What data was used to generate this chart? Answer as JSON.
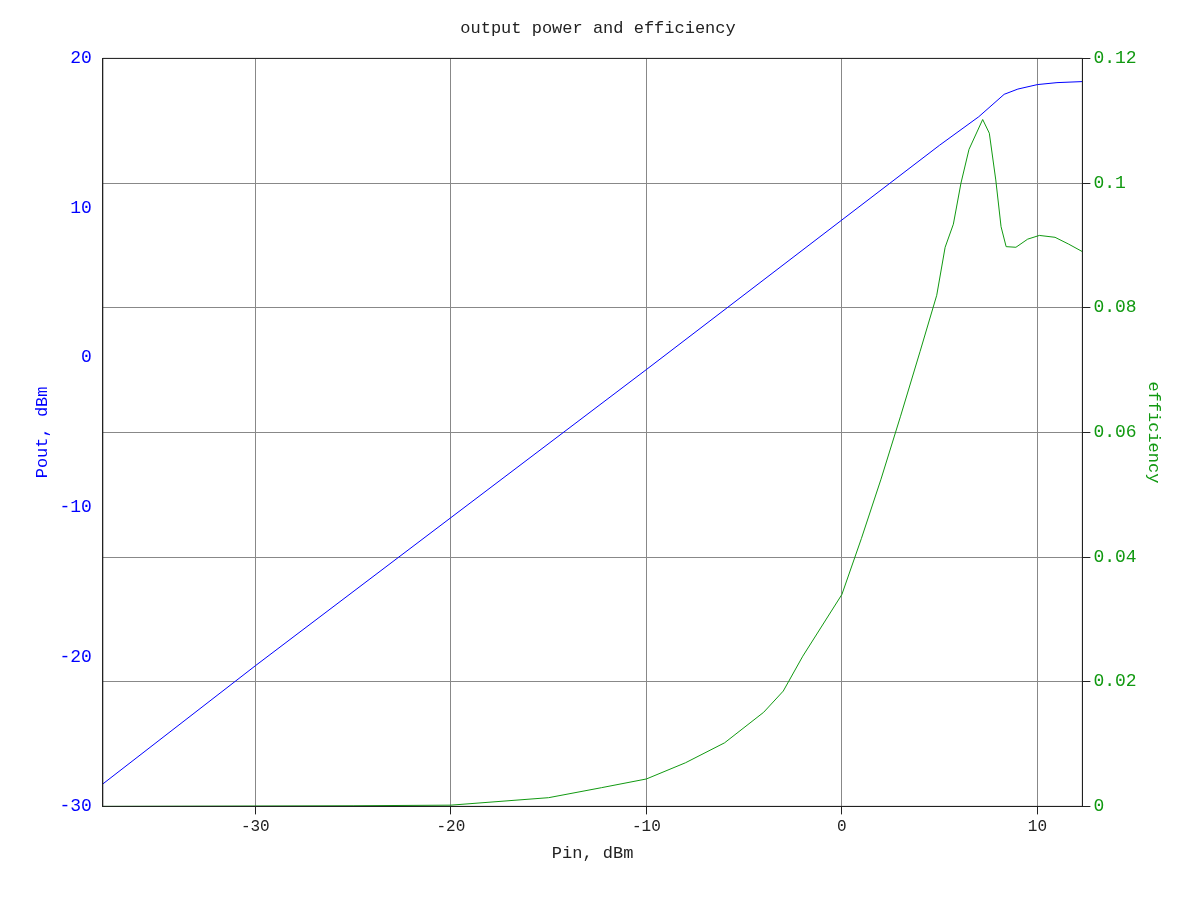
{
  "chart_data": {
    "type": "line",
    "title": "output power and efficiency",
    "xlabel": "Pin, dBm",
    "ylabel": "Pout, dBm",
    "y2label": "efficiency",
    "xlim": [
      -37.8,
      12.3
    ],
    "xticks": [
      -30,
      -20,
      -10,
      0,
      10
    ],
    "ylim": [
      -30,
      20
    ],
    "yticks": [
      -30,
      -20,
      -10,
      0,
      10,
      20
    ],
    "y2lim": [
      0,
      0.12
    ],
    "y2ticks": [
      0,
      0.02,
      0.04,
      0.06,
      0.08,
      0.1,
      0.12
    ],
    "grid": true,
    "legend": false,
    "marker": "none",
    "line_style": "solid",
    "series": [
      {
        "color": "#0000ff",
        "axis": "y",
        "x": [
          -37.8,
          -30,
          -20,
          -10,
          0,
          5,
          7,
          8.3,
          9,
          10,
          11,
          12.3
        ],
        "values": [
          -28.5,
          -20.6,
          -10.7,
          -0.8,
          9.2,
          14.2,
          16.1,
          17.6,
          17.95,
          18.25,
          18.38,
          18.45
        ]
      },
      {
        "color": "#119911",
        "axis": "y2",
        "x": [
          -37.8,
          -25,
          -20,
          -15,
          -12.3,
          -10,
          -8,
          -6,
          -4,
          -3,
          -2,
          0,
          1,
          2,
          3,
          4,
          4.85,
          5.28,
          5.7,
          6.09,
          6.5,
          7.2,
          7.54,
          7.87,
          8.14,
          8.4,
          8.9,
          9.5,
          10.1,
          10.9,
          11.6,
          12.3
        ],
        "values": [
          0,
          0.0001,
          0.0002,
          0.0014,
          0.003,
          0.0044,
          0.007,
          0.0102,
          0.0151,
          0.0185,
          0.0241,
          0.034,
          0.043,
          0.0525,
          0.0626,
          0.073,
          0.082,
          0.0897,
          0.0934,
          0.1,
          0.1054,
          0.1102,
          0.108,
          0.1005,
          0.093,
          0.0898,
          0.0897,
          0.091,
          0.0916,
          0.0913,
          0.0902,
          0.089
        ]
      }
    ]
  }
}
